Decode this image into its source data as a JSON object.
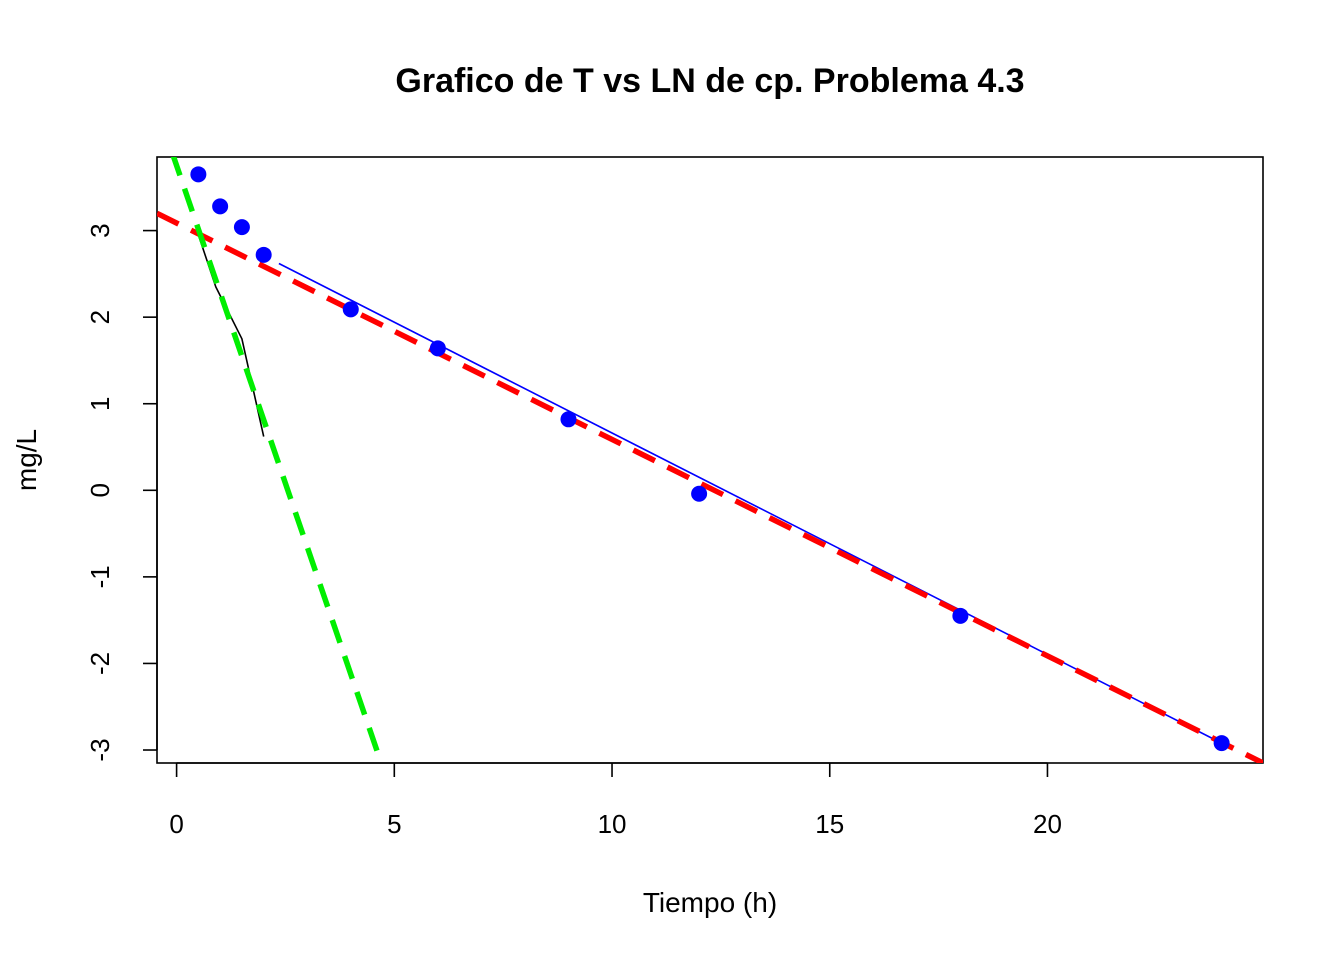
{
  "chart_data": {
    "type": "scatter",
    "title": "Grafico de T vs LN de cp. Problema 4.3",
    "xlabel": "Tiempo (h)",
    "ylabel": "mg/L",
    "xlim": [
      -0.45,
      24.95
    ],
    "ylim": [
      -3.15,
      3.85
    ],
    "x_ticks": [
      0,
      5,
      10,
      15,
      20
    ],
    "y_ticks": [
      -3,
      -2,
      -1,
      0,
      1,
      2,
      3
    ],
    "grid": false,
    "legend": "none",
    "series": [
      {
        "kind": "points",
        "color": "#0000ff",
        "x": [
          0.5,
          1,
          1.5,
          2,
          4,
          6,
          9,
          12,
          18,
          24
        ],
        "y": [
          3.65,
          3.28,
          3.04,
          2.72,
          2.09,
          1.64,
          0.82,
          -0.04,
          -1.45,
          -2.92
        ]
      },
      {
        "kind": "line",
        "style": "thin-solid",
        "color": "#0000ff",
        "x": [
          2.35,
          24
        ],
        "y": [
          2.62,
          -2.92
        ]
      },
      {
        "kind": "line",
        "style": "thin-solid",
        "color": "#000000",
        "x": [
          0.5,
          0.9,
          1.5,
          2.0
        ],
        "y": [
          2.95,
          2.35,
          1.75,
          0.62
        ]
      },
      {
        "kind": "line",
        "style": "thick-dashed",
        "color": "#ff0000",
        "x": [
          -0.45,
          24.95
        ],
        "y": [
          3.2,
          -3.15
        ]
      },
      {
        "kind": "line",
        "style": "thick-dashed",
        "color": "#00ee00",
        "x": [
          -0.1,
          4.7
        ],
        "y": [
          3.9,
          -3.15
        ]
      }
    ]
  }
}
